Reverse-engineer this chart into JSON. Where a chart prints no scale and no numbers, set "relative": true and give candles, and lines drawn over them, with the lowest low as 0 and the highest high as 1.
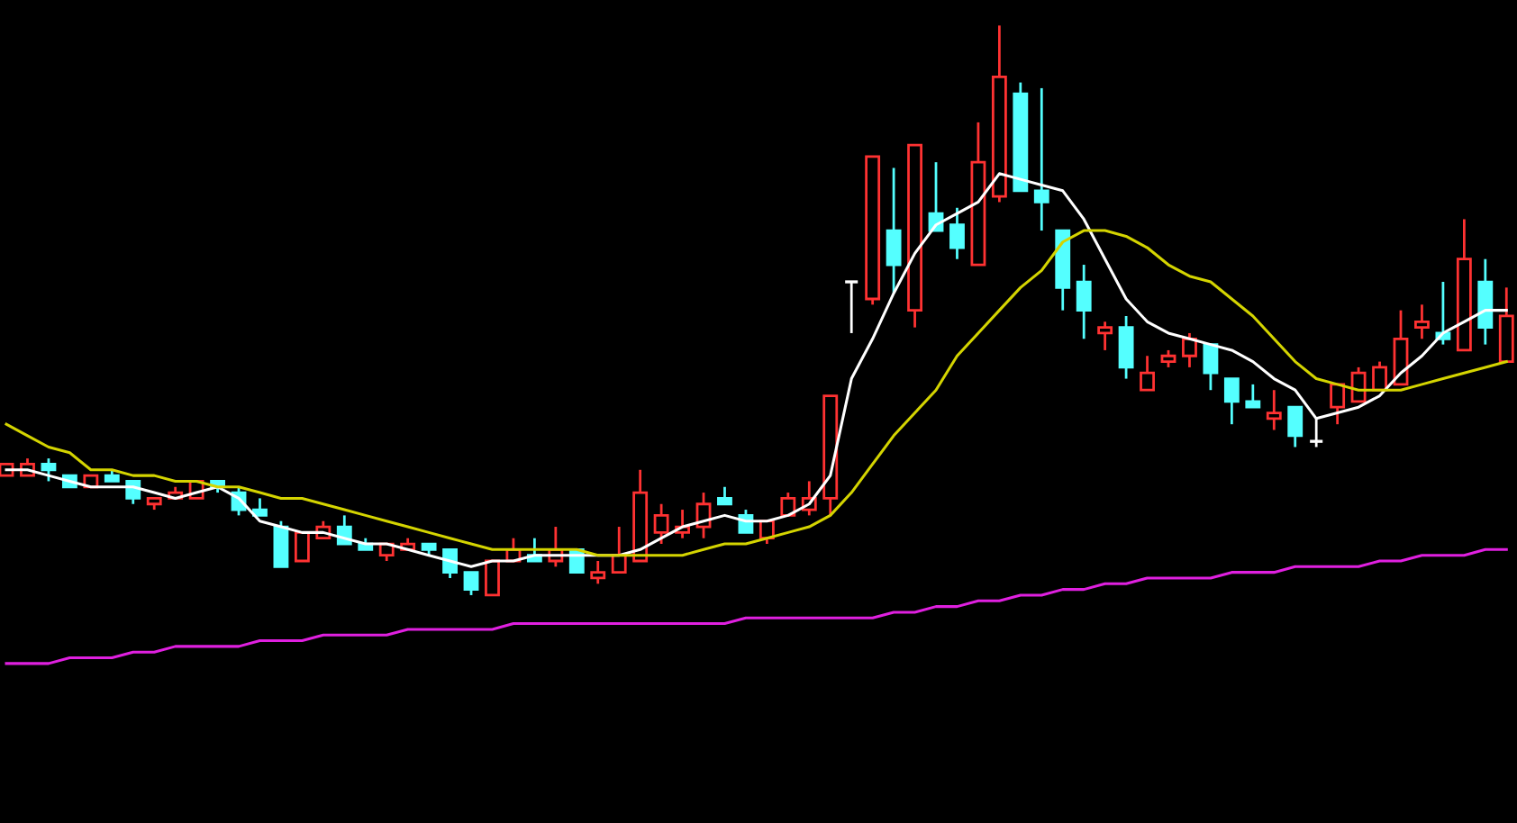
{
  "chart_data": {
    "type": "candlestick",
    "relative": true,
    "categories": [
      null,
      null,
      null,
      null,
      null,
      null,
      null,
      null,
      null,
      null,
      null,
      null,
      null,
      null,
      null,
      null,
      null,
      null,
      null,
      null,
      null,
      null,
      null,
      null,
      null,
      null,
      null,
      null,
      null,
      null,
      null,
      null,
      null,
      null,
      null,
      null,
      null,
      null,
      null,
      null,
      null,
      null,
      null,
      null,
      null,
      null,
      null,
      null,
      null,
      null,
      null,
      null,
      null,
      null,
      null,
      null,
      null,
      null,
      null,
      null,
      null,
      null,
      null,
      null,
      null,
      null,
      null,
      null,
      null,
      null,
      null,
      null
    ],
    "ohlc": [
      [
        0.21,
        0.23,
        0.21,
        0.23
      ],
      [
        0.21,
        0.24,
        0.21,
        0.23
      ],
      [
        0.23,
        0.24,
        0.2,
        0.22
      ],
      [
        0.21,
        0.21,
        0.19,
        0.19
      ],
      [
        0.19,
        0.21,
        0.19,
        0.21
      ],
      [
        0.21,
        0.22,
        0.2,
        0.2
      ],
      [
        0.2,
        0.2,
        0.16,
        0.17
      ],
      [
        0.16,
        0.17,
        0.15,
        0.17
      ],
      [
        0.17,
        0.19,
        0.17,
        0.18
      ],
      [
        0.17,
        0.2,
        0.17,
        0.2
      ],
      [
        0.2,
        0.2,
        0.18,
        0.19
      ],
      [
        0.18,
        0.19,
        0.14,
        0.15
      ],
      [
        0.15,
        0.17,
        0.14,
        0.14
      ],
      [
        0.12,
        0.13,
        0.05,
        0.05
      ],
      [
        0.06,
        0.11,
        0.06,
        0.11
      ],
      [
        0.1,
        0.13,
        0.1,
        0.12
      ],
      [
        0.12,
        0.14,
        0.09,
        0.09
      ],
      [
        0.09,
        0.1,
        0.08,
        0.08
      ],
      [
        0.07,
        0.09,
        0.06,
        0.09
      ],
      [
        0.08,
        0.1,
        0.08,
        0.09
      ],
      [
        0.09,
        0.09,
        0.07,
        0.08
      ],
      [
        0.08,
        0.08,
        0.03,
        0.04
      ],
      [
        0.04,
        0.04,
        0,
        0.01
      ],
      [
        0,
        0.06,
        0,
        0.06
      ],
      [
        0.06,
        0.1,
        0.06,
        0.08
      ],
      [
        0.07,
        0.1,
        0.06,
        0.06
      ],
      [
        0.06,
        0.12,
        0.05,
        0.08
      ],
      [
        0.08,
        0.08,
        0.04,
        0.04
      ],
      [
        0.03,
        0.06,
        0.02,
        0.04
      ],
      [
        0.04,
        0.12,
        0.04,
        0.07
      ],
      [
        0.06,
        0.22,
        0.06,
        0.18
      ],
      [
        0.11,
        0.16,
        0.09,
        0.14
      ],
      [
        0.11,
        0.15,
        0.1,
        0.12
      ],
      [
        0.12,
        0.18,
        0.1,
        0.16
      ],
      [
        0.17,
        0.19,
        0.16,
        0.16
      ],
      [
        0.14,
        0.15,
        0.11,
        0.11
      ],
      [
        0.1,
        0.13,
        0.09,
        0.13
      ],
      [
        0.14,
        0.18,
        0.14,
        0.17
      ],
      [
        0.15,
        0.2,
        0.14,
        0.17
      ],
      [
        0.17,
        0.35,
        0.14,
        0.35
      ],
      [
        0.55,
        0.55,
        0.46,
        0.55
      ],
      [
        0.52,
        0.77,
        0.51,
        0.77
      ],
      [
        0.64,
        0.75,
        0.53,
        0.58
      ],
      [
        0.5,
        0.79,
        0.47,
        0.79
      ],
      [
        0.67,
        0.76,
        0.64,
        0.64
      ],
      [
        0.65,
        0.68,
        0.59,
        0.61
      ],
      [
        0.58,
        0.83,
        0.58,
        0.76
      ],
      [
        0.7,
        1,
        0.69,
        0.91
      ],
      [
        0.88,
        0.9,
        0.71,
        0.71
      ],
      [
        0.71,
        0.89,
        0.64,
        0.69
      ],
      [
        0.64,
        0.64,
        0.5,
        0.54
      ],
      [
        0.55,
        0.58,
        0.45,
        0.5
      ],
      [
        0.46,
        0.48,
        0.43,
        0.47
      ],
      [
        0.47,
        0.49,
        0.38,
        0.4
      ],
      [
        0.36,
        0.42,
        0.36,
        0.39
      ],
      [
        0.41,
        0.43,
        0.4,
        0.42
      ],
      [
        0.42,
        0.46,
        0.4,
        0.45
      ],
      [
        0.44,
        0.44,
        0.36,
        0.39
      ],
      [
        0.38,
        0.38,
        0.3,
        0.34
      ],
      [
        0.34,
        0.37,
        0.33,
        0.33
      ],
      [
        0.31,
        0.36,
        0.29,
        0.32
      ],
      [
        0.33,
        0.33,
        0.26,
        0.28
      ],
      [
        0.27,
        0.31,
        0.26,
        0.27
      ],
      [
        0.33,
        0.37,
        0.3,
        0.37
      ],
      [
        0.34,
        0.4,
        0.34,
        0.39
      ],
      [
        0.36,
        0.41,
        0.36,
        0.4
      ],
      [
        0.37,
        0.5,
        0.37,
        0.45
      ],
      [
        0.47,
        0.51,
        0.45,
        0.48
      ],
      [
        0.46,
        0.55,
        0.44,
        0.45
      ],
      [
        0.43,
        0.66,
        0.43,
        0.59
      ],
      [
        0.55,
        0.59,
        0.44,
        0.47
      ],
      [
        0.41,
        0.54,
        0.41,
        0.49
      ]
    ],
    "colors": [
      "#ff3232",
      "#ff3232",
      "#54ffff",
      "#54ffff",
      "#ff3232",
      "#54ffff",
      "#54ffff",
      "#ff3232",
      "#ff3232",
      "#ff3232",
      "#54ffff",
      "#54ffff",
      "#54ffff",
      "#54ffff",
      "#ff3232",
      "#ff3232",
      "#54ffff",
      "#54ffff",
      "#ff3232",
      "#ff3232",
      "#54ffff",
      "#54ffff",
      "#54ffff",
      "#ff3232",
      "#ff3232",
      "#54ffff",
      "#ff3232",
      "#54ffff",
      "#ff3232",
      "#ff3232",
      "#ff3232",
      "#ff3232",
      "#ff3232",
      "#ff3232",
      "#54ffff",
      "#54ffff",
      "#ff3232",
      "#ff3232",
      "#ff3232",
      "#ff3232",
      "#ffffff",
      "#ff3232",
      "#54ffff",
      "#ff3232",
      "#54ffff",
      "#54ffff",
      "#ff3232",
      "#ff3232",
      "#54ffff",
      "#54ffff",
      "#54ffff",
      "#54ffff",
      "#ff3232",
      "#54ffff",
      "#ff3232",
      "#ff3232",
      "#ff3232",
      "#54ffff",
      "#54ffff",
      "#54ffff",
      "#ff3232",
      "#54ffff",
      "#ffffff",
      "#ff3232",
      "#ff3232",
      "#ff3232",
      "#ff3232",
      "#ff3232",
      "#54ffff",
      "#ff3232",
      "#54ffff",
      "#ff3232"
    ],
    "series": [
      {
        "type": "line",
        "color": "#ffffff",
        "values": [
          0.22,
          0.22,
          0.21,
          0.2,
          0.19,
          0.19,
          0.19,
          0.18,
          0.17,
          0.18,
          0.19,
          0.17,
          0.13,
          0.12,
          0.11,
          0.11,
          0.1,
          0.09,
          0.09,
          0.08,
          0.07,
          0.06,
          0.05,
          0.06,
          0.06,
          0.07,
          0.07,
          0.07,
          0.07,
          0.07,
          0.08,
          0.1,
          0.12,
          0.13,
          0.14,
          0.13,
          0.13,
          0.14,
          0.16,
          0.21,
          0.38,
          0.45,
          0.53,
          0.6,
          0.65,
          0.67,
          0.69,
          0.74,
          0.73,
          0.72,
          0.71,
          0.66,
          0.59,
          0.52,
          0.48,
          0.46,
          0.45,
          0.44,
          0.43,
          0.41,
          0.38,
          0.36,
          0.31,
          0.32,
          0.33,
          0.35,
          0.39,
          0.42,
          0.46,
          0.48,
          0.5,
          0.5
        ]
      },
      {
        "type": "line",
        "color": "#d4d400",
        "values": [
          0.3,
          0.28,
          0.26,
          0.25,
          0.22,
          0.22,
          0.21,
          0.21,
          0.2,
          0.2,
          0.19,
          0.19,
          0.18,
          0.17,
          0.17,
          0.16,
          0.15,
          0.14,
          0.13,
          0.12,
          0.11,
          0.1,
          0.09,
          0.08,
          0.08,
          0.08,
          0.08,
          0.08,
          0.07,
          0.07,
          0.07,
          0.07,
          0.07,
          0.08,
          0.09,
          0.09,
          0.1,
          0.11,
          0.12,
          0.14,
          0.18,
          0.23,
          0.28,
          0.32,
          0.36,
          0.42,
          0.46,
          0.5,
          0.54,
          0.57,
          0.62,
          0.64,
          0.64,
          0.63,
          0.61,
          0.58,
          0.56,
          0.55,
          0.52,
          0.49,
          0.45,
          0.41,
          0.38,
          0.37,
          0.36,
          0.36,
          0.36,
          0.37,
          0.38,
          0.39,
          0.4,
          0.41
        ]
      },
      {
        "type": "line",
        "color": "#e020e0",
        "values": [
          -0.12,
          -0.12,
          -0.12,
          -0.11,
          -0.11,
          -0.11,
          -0.1,
          -0.1,
          -0.09,
          -0.09,
          -0.09,
          -0.09,
          -0.08,
          -0.08,
          -0.08,
          -0.07,
          -0.07,
          -0.07,
          -0.07,
          -0.06,
          -0.06,
          -0.06,
          -0.06,
          -0.06,
          -0.05,
          -0.05,
          -0.05,
          -0.05,
          -0.05,
          -0.05,
          -0.05,
          -0.05,
          -0.05,
          -0.05,
          -0.05,
          -0.04,
          -0.04,
          -0.04,
          -0.04,
          -0.04,
          -0.04,
          -0.04,
          -0.03,
          -0.03,
          -0.02,
          -0.02,
          -0.01,
          -0.01,
          0,
          0,
          0.01,
          0.01,
          0.02,
          0.02,
          0.03,
          0.03,
          0.03,
          0.03,
          0.04,
          0.04,
          0.04,
          0.05,
          0.05,
          0.05,
          0.05,
          0.06,
          0.06,
          0.07,
          0.07,
          0.07,
          0.08,
          0.08
        ]
      }
    ]
  }
}
